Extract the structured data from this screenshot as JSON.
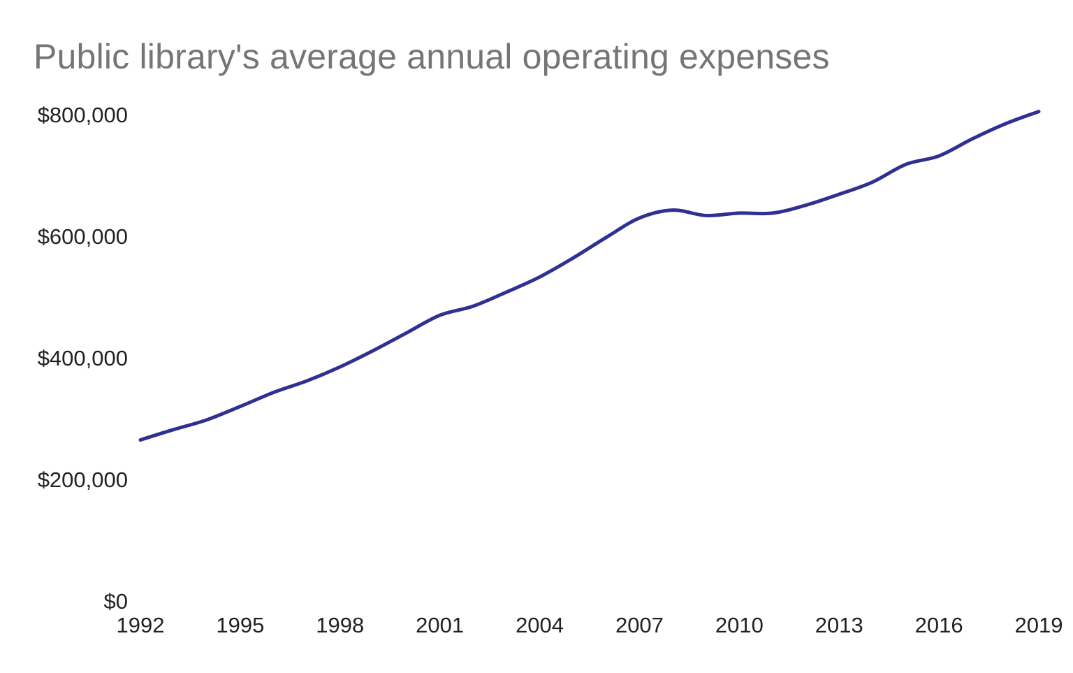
{
  "chart_data": {
    "type": "line",
    "title": "Public library's average annual operating expenses",
    "xlabel": "",
    "ylabel": "",
    "x": [
      1992,
      1993,
      1994,
      1995,
      1996,
      1997,
      1998,
      1999,
      2000,
      2001,
      2002,
      2003,
      2004,
      2005,
      2006,
      2007,
      2008,
      2009,
      2010,
      2011,
      2012,
      2013,
      2014,
      2015,
      2016,
      2017,
      2018,
      2019
    ],
    "series": [
      {
        "name": "",
        "color": "#2e3192",
        "values": [
          265000,
          282000,
          298000,
          320000,
          343000,
          362000,
          385000,
          412000,
          441000,
          470000,
          485000,
          508000,
          533000,
          564000,
          598000,
          630000,
          643000,
          634000,
          638000,
          638000,
          651000,
          669000,
          689000,
          718000,
          732000,
          760000,
          785000,
          805000
        ]
      }
    ],
    "xticks": [
      1992,
      1995,
      1998,
      2001,
      2004,
      2007,
      2010,
      2013,
      2016,
      2019
    ],
    "xtick_labels": [
      "1992",
      "1995",
      "1998",
      "2001",
      "2004",
      "2007",
      "2010",
      "2013",
      "2016",
      "2019"
    ],
    "yticks": [
      0,
      200000,
      400000,
      600000,
      800000
    ],
    "ytick_labels": [
      "$0",
      "$200,000",
      "$400,000",
      "$600,000",
      "$800,000"
    ],
    "xlim": [
      1992,
      2019
    ],
    "ylim": [
      0,
      800000
    ],
    "grid": false,
    "legend": "none"
  }
}
